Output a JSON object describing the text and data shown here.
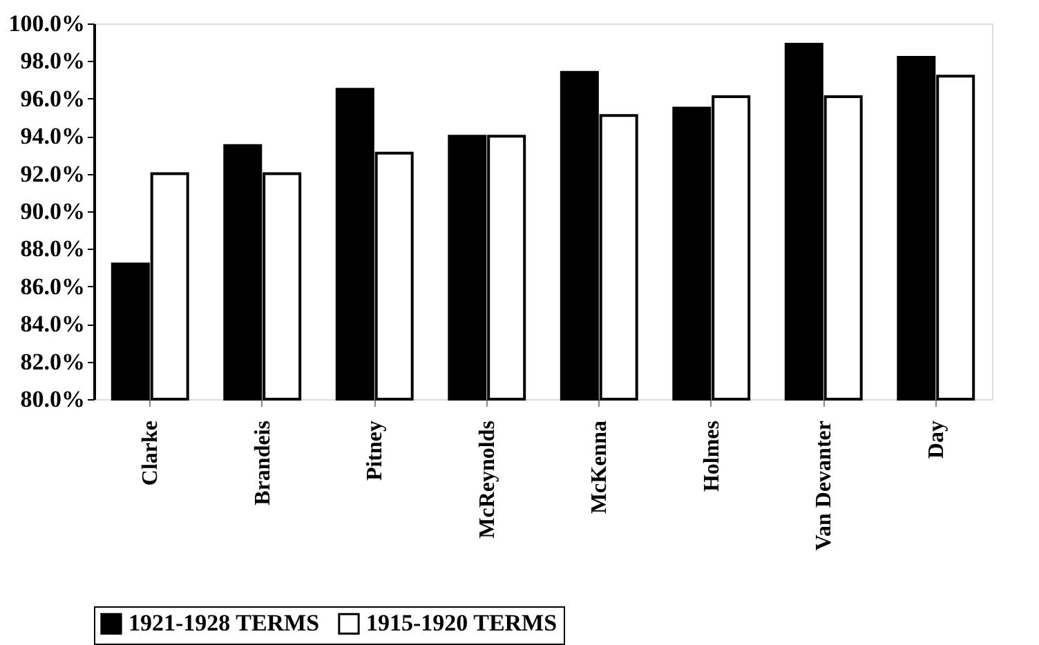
{
  "chart_data": {
    "type": "bar",
    "categories": [
      "Clarke",
      "Brandeis",
      "Pitney",
      "McReynolds",
      "McKenna",
      "Holmes",
      "Van Devanter",
      "Day"
    ],
    "series": [
      {
        "name": "1921-1928 TERMS",
        "color": "#000000",
        "values": [
          87.2,
          93.5,
          96.5,
          94.0,
          97.4,
          95.5,
          98.9,
          98.2
        ]
      },
      {
        "name": "1915-1920 TERMS",
        "color": "#ffffff",
        "values": [
          92.0,
          92.0,
          93.1,
          94.0,
          95.1,
          96.1,
          96.1,
          97.2
        ]
      }
    ],
    "ylim": [
      80,
      100
    ],
    "yticks": [
      {
        "value": 80,
        "label": "80.0%"
      },
      {
        "value": 82,
        "label": "82.0%"
      },
      {
        "value": 84,
        "label": "84.0%"
      },
      {
        "value": 86,
        "label": "86.0%"
      },
      {
        "value": 88,
        "label": "88.0%"
      },
      {
        "value": 90,
        "label": "90.0%"
      },
      {
        "value": 92,
        "label": "92.0%"
      },
      {
        "value": 94,
        "label": "94.0%"
      },
      {
        "value": 96,
        "label": "96.0%"
      },
      {
        "value": 98,
        "label": "98.0%"
      },
      {
        "value": 100,
        "label": "100.0%"
      }
    ],
    "grid": false,
    "legend": "bottom"
  }
}
